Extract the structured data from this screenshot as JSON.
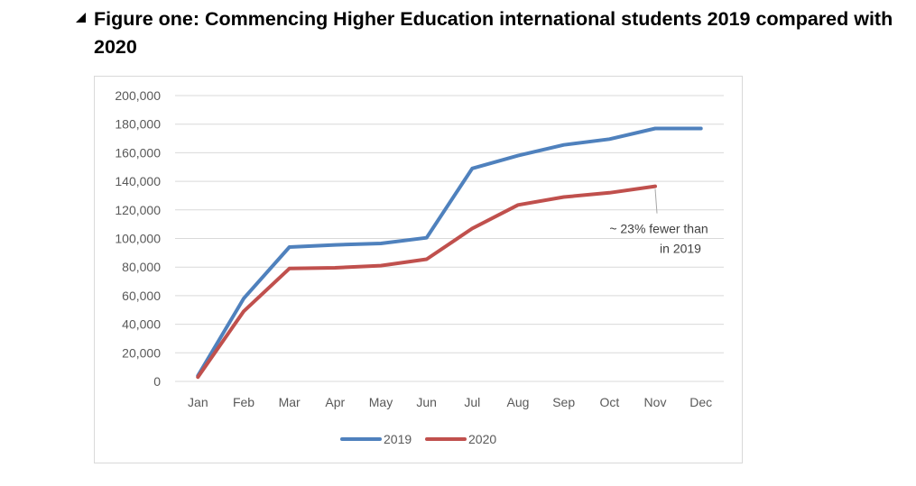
{
  "heading": {
    "text": "Figure one: Commencing Higher Education international students 2019 compared with 2020"
  },
  "chart_data": {
    "type": "line",
    "title": "",
    "xlabel": "",
    "ylabel": "",
    "categories": [
      "Jan",
      "Feb",
      "Mar",
      "Apr",
      "May",
      "Jun",
      "Jul",
      "Aug",
      "Sep",
      "Oct",
      "Nov",
      "Dec"
    ],
    "ylim": [
      0,
      200000
    ],
    "yticks": [
      0,
      20000,
      40000,
      60000,
      80000,
      100000,
      120000,
      140000,
      160000,
      180000,
      200000
    ],
    "ytick_labels": [
      "0",
      "20,000",
      "40,000",
      "60,000",
      "80,000",
      "100,000",
      "120,000",
      "140,000",
      "160,000",
      "180,000",
      "200,000"
    ],
    "grid": true,
    "legend_position": "bottom",
    "series": [
      {
        "name": "2019",
        "color": "#4f81bd",
        "values": [
          4000,
          58000,
          94000,
          95500,
          96500,
          100500,
          149000,
          158000,
          165500,
          169500,
          177000,
          177000
        ]
      },
      {
        "name": "2020",
        "color": "#c0504d",
        "values": [
          3000,
          49000,
          79000,
          79500,
          81000,
          85500,
          107000,
          123500,
          129000,
          132000,
          136500,
          null
        ]
      }
    ],
    "annotations": [
      {
        "lines": [
          "~ 23% fewer than",
          "in 2019"
        ],
        "series": "2020",
        "category": "Nov"
      }
    ]
  }
}
